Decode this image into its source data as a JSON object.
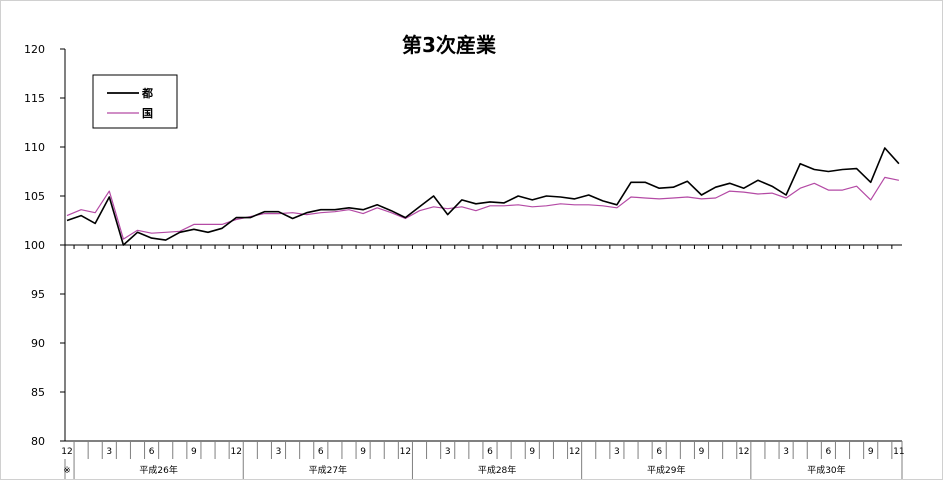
{
  "chart_data": {
    "type": "line",
    "title": "第3次産業",
    "ylim": [
      80,
      120
    ],
    "yticks": [
      80,
      85,
      90,
      95,
      100,
      105,
      110,
      115,
      120
    ],
    "baseline": 100,
    "x_month_labels": [
      "12",
      "",
      "",
      "3",
      "",
      "",
      "6",
      "",
      "",
      "9",
      "",
      "",
      "12",
      "",
      "",
      "3",
      "",
      "",
      "6",
      "",
      "",
      "9",
      "",
      "",
      "12",
      "",
      "",
      "3",
      "",
      "",
      "6",
      "",
      "",
      "9",
      "",
      "",
      "12",
      "",
      "",
      "3",
      "",
      "",
      "6",
      "",
      "",
      "9",
      "",
      "",
      "12",
      "",
      "",
      "3",
      "",
      "",
      "6",
      "",
      "",
      "9",
      "",
      "11"
    ],
    "first_mark": "※",
    "years": [
      {
        "label": "平成26年",
        "start": 1,
        "end": 12
      },
      {
        "label": "平成27年",
        "start": 13,
        "end": 24
      },
      {
        "label": "平成28年",
        "start": 25,
        "end": 36
      },
      {
        "label": "平成29年",
        "start": 37,
        "end": 48
      },
      {
        "label": "平成30年",
        "start": 49,
        "end": 59
      }
    ],
    "legend_position": "top-left",
    "series": [
      {
        "name": "都",
        "color": "#000000",
        "values": [
          102.5,
          103.0,
          102.2,
          104.9,
          100.0,
          101.3,
          100.7,
          100.5,
          101.3,
          101.6,
          101.3,
          101.7,
          102.8,
          102.8,
          103.4,
          103.4,
          102.7,
          103.3,
          103.6,
          103.6,
          103.8,
          103.6,
          104.1,
          103.5,
          102.8,
          103.9,
          105.0,
          103.1,
          104.6,
          104.2,
          104.4,
          104.3,
          105.0,
          104.6,
          105.0,
          104.9,
          104.7,
          105.1,
          104.5,
          104.1,
          106.4,
          106.4,
          105.8,
          105.9,
          106.5,
          105.1,
          105.9,
          106.3,
          105.8,
          106.6,
          106.0,
          105.1,
          108.3,
          107.7,
          107.5,
          107.7,
          107.8,
          106.4,
          109.9,
          108.3
        ]
      },
      {
        "name": "国",
        "color": "#b44aa5",
        "values": [
          103.0,
          103.6,
          103.3,
          105.5,
          100.6,
          101.5,
          101.2,
          101.3,
          101.4,
          102.1,
          102.1,
          102.1,
          102.6,
          102.9,
          103.2,
          103.2,
          103.3,
          103.1,
          103.3,
          103.4,
          103.6,
          103.2,
          103.8,
          103.3,
          102.7,
          103.5,
          103.9,
          103.7,
          103.9,
          103.5,
          104.0,
          104.0,
          104.1,
          103.9,
          104.0,
          104.2,
          104.1,
          104.1,
          104.0,
          103.8,
          104.9,
          104.8,
          104.7,
          104.8,
          104.9,
          104.7,
          104.8,
          105.5,
          105.4,
          105.2,
          105.3,
          104.8,
          105.8,
          106.3,
          105.6,
          105.6,
          106.0,
          104.6,
          106.9,
          106.6
        ]
      }
    ]
  }
}
